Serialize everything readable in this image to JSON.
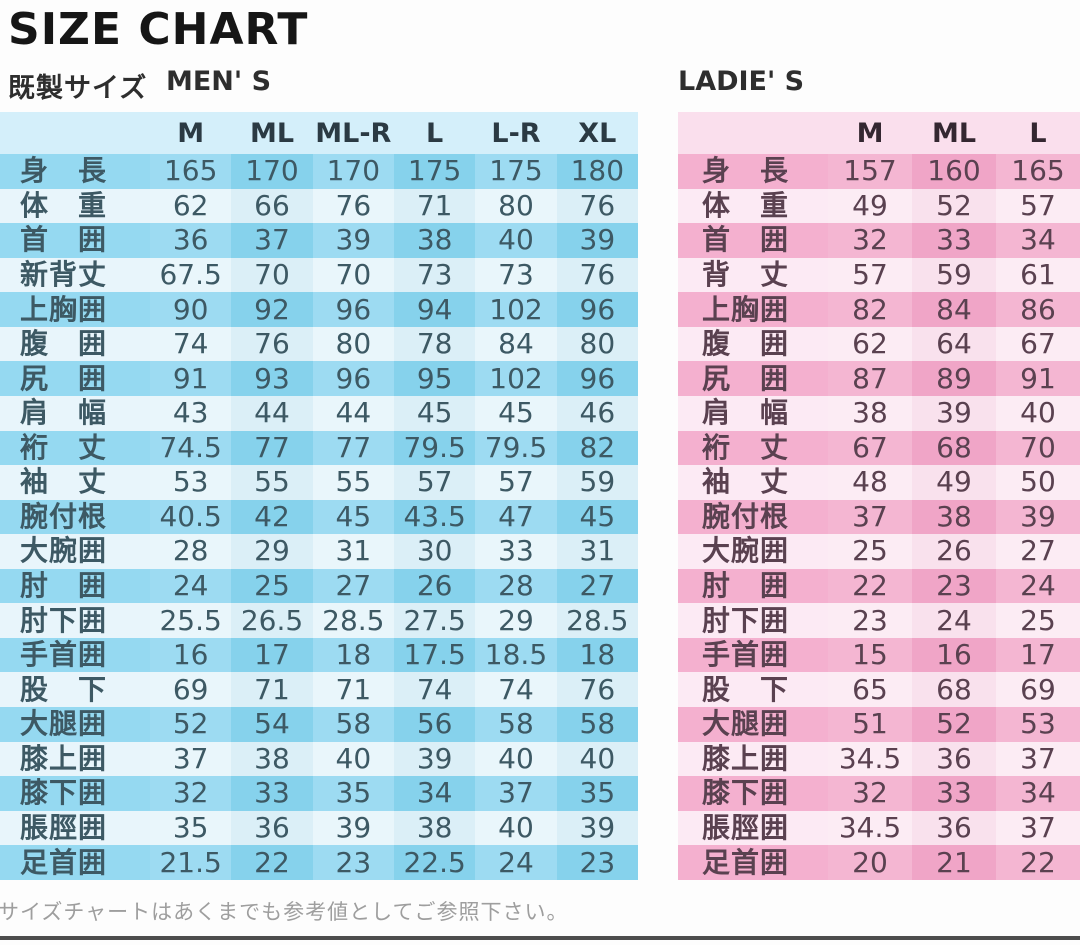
{
  "title": "SIZE CHART",
  "subtitle": "既製サイズ",
  "footer": "サイズチャートはあくまでも参考値としてご参照下さい。",
  "colors": {
    "men_header": "#d4effa",
    "men_medium": "#8dd6f0",
    "men_light": "#e6f5fb",
    "men_text": "#3d5964",
    "men_header_text": "#2b3a43",
    "ladies_header": "#fadfed",
    "ladies_medium": "#f3aacb",
    "ladies_light": "#fce9f3",
    "ladies_text": "#5a4150",
    "ladies_header_text": "#342731"
  },
  "men": {
    "label": "MEN' S",
    "columns": [
      "M",
      "ML",
      "ML-R",
      "L",
      "L-R",
      "XL"
    ],
    "rows": [
      {
        "label": "身　長",
        "values": [
          165,
          170,
          170,
          175,
          175,
          180
        ]
      },
      {
        "label": "体　重",
        "values": [
          62,
          66,
          76,
          71,
          80,
          76
        ]
      },
      {
        "label": "首　囲",
        "values": [
          36,
          37,
          39,
          38,
          40,
          39
        ]
      },
      {
        "label": "新背丈",
        "values": [
          67.5,
          70,
          70,
          73,
          73,
          76
        ]
      },
      {
        "label": "上胸囲",
        "values": [
          90,
          92,
          96,
          94,
          102,
          96
        ]
      },
      {
        "label": "腹　囲",
        "values": [
          74,
          76,
          80,
          78,
          84,
          80
        ]
      },
      {
        "label": "尻　囲",
        "values": [
          91,
          93,
          96,
          95,
          102,
          96
        ]
      },
      {
        "label": "肩　幅",
        "values": [
          43,
          44,
          44,
          45,
          45,
          46
        ]
      },
      {
        "label": "裄　丈",
        "values": [
          74.5,
          77,
          77,
          79.5,
          79.5,
          82
        ]
      },
      {
        "label": "袖　丈",
        "values": [
          53,
          55,
          55,
          57,
          57,
          59
        ]
      },
      {
        "label": "腕付根",
        "values": [
          40.5,
          42,
          45,
          43.5,
          47,
          45
        ]
      },
      {
        "label": "大腕囲",
        "values": [
          28,
          29,
          31,
          30,
          33,
          31
        ]
      },
      {
        "label": "肘　囲",
        "values": [
          24,
          25,
          27,
          26,
          28,
          27
        ]
      },
      {
        "label": "肘下囲",
        "values": [
          25.5,
          26.5,
          28.5,
          27.5,
          29,
          28.5
        ]
      },
      {
        "label": "手首囲",
        "values": [
          16,
          17,
          18,
          17.5,
          18.5,
          18
        ]
      },
      {
        "label": "股　下",
        "values": [
          69,
          71,
          71,
          74,
          74,
          76
        ]
      },
      {
        "label": "大腿囲",
        "values": [
          52,
          54,
          58,
          56,
          58,
          58
        ]
      },
      {
        "label": "膝上囲",
        "values": [
          37,
          38,
          40,
          39,
          40,
          40
        ]
      },
      {
        "label": "膝下囲",
        "values": [
          32,
          33,
          35,
          34,
          37,
          35
        ]
      },
      {
        "label": "脹脛囲",
        "values": [
          35,
          36,
          39,
          38,
          40,
          39
        ]
      },
      {
        "label": "足首囲",
        "values": [
          21.5,
          22,
          23,
          22.5,
          24,
          23
        ]
      }
    ]
  },
  "ladies": {
    "label": "LADIE' S",
    "columns": [
      "M",
      "ML",
      "L"
    ],
    "rows": [
      {
        "label": "身　長",
        "values": [
          157,
          160,
          165
        ]
      },
      {
        "label": "体　重",
        "values": [
          49,
          52,
          57
        ]
      },
      {
        "label": "首　囲",
        "values": [
          32,
          33,
          34
        ]
      },
      {
        "label": "背　丈",
        "values": [
          57,
          59,
          61
        ]
      },
      {
        "label": "上胸囲",
        "values": [
          82,
          84,
          86
        ]
      },
      {
        "label": "腹　囲",
        "values": [
          62,
          64,
          67
        ]
      },
      {
        "label": "尻　囲",
        "values": [
          87,
          89,
          91
        ]
      },
      {
        "label": "肩　幅",
        "values": [
          38,
          39,
          40
        ]
      },
      {
        "label": "裄　丈",
        "values": [
          67,
          68,
          70
        ]
      },
      {
        "label": "袖　丈",
        "values": [
          48,
          49,
          50
        ]
      },
      {
        "label": "腕付根",
        "values": [
          37,
          38,
          39
        ]
      },
      {
        "label": "大腕囲",
        "values": [
          25,
          26,
          27
        ]
      },
      {
        "label": "肘　囲",
        "values": [
          22,
          23,
          24
        ]
      },
      {
        "label": "肘下囲",
        "values": [
          23,
          24,
          25
        ]
      },
      {
        "label": "手首囲",
        "values": [
          15,
          16,
          17
        ]
      },
      {
        "label": "股　下",
        "values": [
          65,
          68,
          69
        ]
      },
      {
        "label": "大腿囲",
        "values": [
          51,
          52,
          53
        ]
      },
      {
        "label": "膝上囲",
        "values": [
          34.5,
          36,
          37
        ]
      },
      {
        "label": "膝下囲",
        "values": [
          32,
          33,
          34
        ]
      },
      {
        "label": "脹脛囲",
        "values": [
          34.5,
          36,
          37
        ]
      },
      {
        "label": "足首囲",
        "values": [
          20,
          21,
          22
        ]
      }
    ]
  }
}
